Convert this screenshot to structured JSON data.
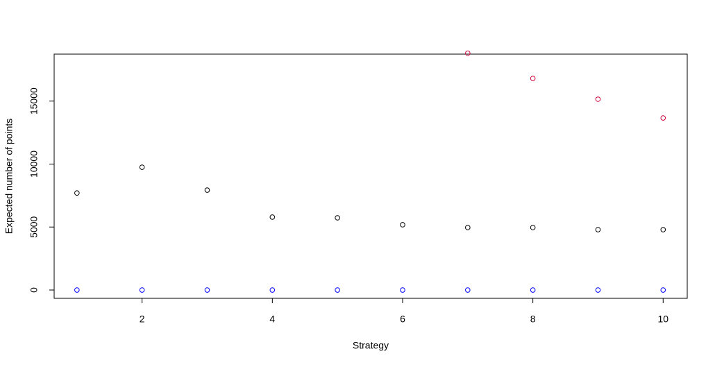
{
  "chart_data": {
    "type": "scatter",
    "x_label": "Strategy",
    "y_label": "Expected number of points",
    "x": [
      1,
      2,
      3,
      4,
      5,
      6,
      7,
      8,
      9,
      10
    ],
    "series": [
      {
        "color": "#000000",
        "values": [
          7700,
          9750,
          7930,
          5790,
          5730,
          5180,
          4960,
          4960,
          4790,
          4790
        ]
      },
      {
        "color": "#d0003a",
        "values": [
          null,
          null,
          null,
          null,
          null,
          null,
          18800,
          16800,
          15150,
          13660
        ]
      },
      {
        "color": "#0000ff",
        "values": [
          0,
          0,
          0,
          0,
          0,
          0,
          0,
          0,
          0,
          0
        ]
      }
    ],
    "xlim": [
      0.65,
      10.37
    ],
    "ylim": [
      -660,
      18730
    ],
    "xticks": [
      2,
      4,
      6,
      8,
      10
    ],
    "yticks": [
      0,
      5000,
      10000,
      15000
    ]
  }
}
